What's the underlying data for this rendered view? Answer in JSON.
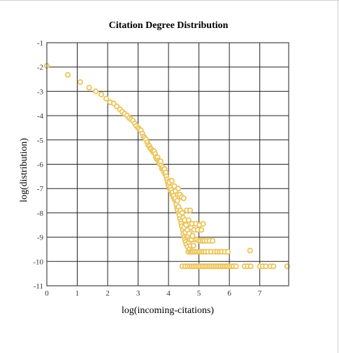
{
  "chart_data": {
    "type": "scatter",
    "title": "Citation Degree Distribution",
    "xlabel": "log(incoming-citations)",
    "ylabel": "log(distribution)",
    "xlim": [
      0,
      7.95
    ],
    "ylim": [
      -11,
      -1
    ],
    "x_ticks": [
      "0",
      "1",
      "2",
      "3",
      "4",
      "5",
      "6",
      "7"
    ],
    "y_ticks": [
      "-1",
      "-2",
      "-3",
      "-4",
      "-5",
      "-6",
      "-7",
      "-8",
      "-9",
      "-10",
      "-11"
    ],
    "grid": true,
    "legend": "none",
    "point_color": "#ebc45a",
    "series": [
      {
        "points": [
          [
            0.0,
            -1.95
          ],
          [
            0.69,
            -2.32
          ],
          [
            1.1,
            -2.62
          ],
          [
            1.39,
            -2.85
          ],
          [
            1.61,
            -3.0
          ],
          [
            1.79,
            -3.13
          ],
          [
            1.95,
            -3.3
          ],
          [
            2.08,
            -3.45
          ],
          [
            2.2,
            -3.5
          ],
          [
            2.3,
            -3.62
          ],
          [
            2.4,
            -3.74
          ],
          [
            2.48,
            -3.84
          ],
          [
            2.56,
            -3.92
          ],
          [
            2.64,
            -4.0
          ],
          [
            2.71,
            -4.1
          ],
          [
            2.77,
            -4.15
          ],
          [
            2.83,
            -4.2
          ],
          [
            2.89,
            -4.32
          ],
          [
            2.94,
            -4.42
          ],
          [
            3.0,
            -4.5
          ],
          [
            3.04,
            -4.56
          ],
          [
            3.09,
            -4.6
          ],
          [
            3.14,
            -4.74
          ],
          [
            3.18,
            -4.86
          ],
          [
            3.22,
            -4.92
          ],
          [
            3.26,
            -4.98
          ],
          [
            3.3,
            -5.1
          ],
          [
            3.33,
            -5.2
          ],
          [
            3.37,
            -5.25
          ],
          [
            3.4,
            -5.34
          ],
          [
            3.43,
            -5.38
          ],
          [
            3.47,
            -5.45
          ],
          [
            3.5,
            -5.5
          ],
          [
            3.53,
            -5.47
          ],
          [
            3.56,
            -5.58
          ],
          [
            3.58,
            -5.7
          ],
          [
            3.61,
            -5.78
          ],
          [
            3.64,
            -5.72
          ],
          [
            3.66,
            -5.85
          ],
          [
            3.69,
            -5.9
          ],
          [
            3.71,
            -5.98
          ],
          [
            3.74,
            -5.88
          ],
          [
            3.76,
            -6.05
          ],
          [
            3.78,
            -6.18
          ],
          [
            3.81,
            -6.12
          ],
          [
            3.83,
            -6.22
          ],
          [
            3.85,
            -6.3
          ],
          [
            3.87,
            -6.2
          ],
          [
            3.89,
            -6.4
          ],
          [
            3.91,
            -6.34
          ],
          [
            3.93,
            -6.5
          ],
          [
            3.95,
            -6.62
          ],
          [
            3.97,
            -6.72
          ],
          [
            3.99,
            -6.82
          ],
          [
            4.01,
            -6.9
          ],
          [
            4.03,
            -6.75
          ],
          [
            4.04,
            -7.0
          ],
          [
            4.06,
            -6.95
          ],
          [
            4.08,
            -7.1
          ],
          [
            4.09,
            -7.05
          ],
          [
            4.11,
            -6.68
          ],
          [
            4.13,
            -7.25
          ],
          [
            4.14,
            -7.15
          ],
          [
            4.16,
            -7.35
          ],
          [
            4.17,
            -7.3
          ],
          [
            4.19,
            -6.9
          ],
          [
            4.2,
            -7.45
          ],
          [
            4.22,
            -7.4
          ],
          [
            4.23,
            -7.1
          ],
          [
            4.25,
            -7.55
          ],
          [
            4.26,
            -7.65
          ],
          [
            4.28,
            -7.8
          ],
          [
            4.29,
            -7.5
          ],
          [
            4.3,
            -7.9
          ],
          [
            4.32,
            -7.0
          ],
          [
            4.33,
            -7.75
          ],
          [
            4.34,
            -8.0
          ],
          [
            4.36,
            -8.1
          ],
          [
            4.37,
            -7.25
          ],
          [
            4.38,
            -8.25
          ],
          [
            4.39,
            -7.9
          ],
          [
            4.41,
            -8.35
          ],
          [
            4.42,
            -8.45
          ],
          [
            4.43,
            -7.35
          ],
          [
            4.44,
            -8.55
          ],
          [
            4.45,
            -8.0
          ],
          [
            4.47,
            -8.7
          ],
          [
            4.48,
            -8.2
          ],
          [
            4.49,
            -8.85
          ],
          [
            4.5,
            -7.4
          ],
          [
            4.51,
            -8.6
          ],
          [
            4.52,
            -9.0
          ],
          [
            4.53,
            -8.3
          ],
          [
            4.54,
            -9.1
          ],
          [
            4.55,
            -8.8
          ],
          [
            4.56,
            -9.2
          ],
          [
            4.58,
            -8.5
          ],
          [
            4.59,
            -9.3
          ],
          [
            4.6,
            -7.9
          ],
          [
            4.61,
            -9.0
          ],
          [
            4.62,
            -8.7
          ],
          [
            4.63,
            -9.4
          ],
          [
            4.64,
            -8.95
          ],
          [
            4.65,
            -9.6
          ],
          [
            4.66,
            -8.3
          ],
          [
            4.67,
            -9.2
          ],
          [
            4.68,
            -8.85
          ],
          [
            4.69,
            -9.5
          ],
          [
            4.7,
            -9.1
          ],
          [
            4.71,
            -7.9
          ],
          [
            4.72,
            -9.6
          ],
          [
            4.73,
            -9.35
          ],
          [
            4.74,
            -8.6
          ],
          [
            4.75,
            -9.6
          ],
          [
            4.76,
            -9.1
          ],
          [
            4.77,
            -8.45
          ],
          [
            4.78,
            -9.6
          ],
          [
            4.79,
            -8.95
          ],
          [
            4.8,
            -9.6
          ],
          [
            4.82,
            -9.35
          ],
          [
            4.84,
            -8.7
          ],
          [
            4.86,
            -9.6
          ],
          [
            4.88,
            -9.1
          ],
          [
            4.9,
            -8.45
          ],
          [
            4.92,
            -9.6
          ],
          [
            4.94,
            -9.1
          ],
          [
            4.96,
            -8.7
          ],
          [
            4.98,
            -9.6
          ],
          [
            5.0,
            -9.15
          ],
          [
            5.02,
            -8.5
          ],
          [
            5.04,
            -9.6
          ],
          [
            5.06,
            -9.15
          ],
          [
            5.08,
            -8.7
          ],
          [
            5.1,
            -9.6
          ],
          [
            5.12,
            -9.15
          ],
          [
            5.14,
            -8.45
          ],
          [
            5.16,
            -9.6
          ],
          [
            5.18,
            -9.15
          ],
          [
            5.22,
            -9.6
          ],
          [
            5.26,
            -9.15
          ],
          [
            5.3,
            -9.6
          ],
          [
            5.35,
            -9.15
          ],
          [
            5.4,
            -9.6
          ],
          [
            5.45,
            -9.15
          ],
          [
            5.52,
            -9.6
          ],
          [
            5.6,
            -9.6
          ],
          [
            5.68,
            -9.6
          ],
          [
            5.75,
            -9.6
          ],
          [
            5.85,
            -9.6
          ],
          [
            5.95,
            -9.6
          ],
          [
            6.68,
            -9.55
          ],
          [
            4.45,
            -10.2
          ],
          [
            4.55,
            -10.2
          ],
          [
            4.63,
            -10.2
          ],
          [
            4.7,
            -10.2
          ],
          [
            4.76,
            -10.2
          ],
          [
            4.82,
            -10.2
          ],
          [
            4.88,
            -10.2
          ],
          [
            4.94,
            -10.2
          ],
          [
            5.0,
            -10.2
          ],
          [
            5.06,
            -10.2
          ],
          [
            5.12,
            -10.2
          ],
          [
            5.18,
            -10.2
          ],
          [
            5.24,
            -10.2
          ],
          [
            5.3,
            -10.2
          ],
          [
            5.36,
            -10.2
          ],
          [
            5.42,
            -10.2
          ],
          [
            5.48,
            -10.2
          ],
          [
            5.54,
            -10.2
          ],
          [
            5.6,
            -10.2
          ],
          [
            5.66,
            -10.2
          ],
          [
            5.72,
            -10.2
          ],
          [
            5.78,
            -10.2
          ],
          [
            5.84,
            -10.2
          ],
          [
            5.9,
            -10.2
          ],
          [
            5.96,
            -10.2
          ],
          [
            6.02,
            -10.2
          ],
          [
            6.08,
            -10.2
          ],
          [
            6.14,
            -10.2
          ],
          [
            6.22,
            -10.2
          ],
          [
            6.5,
            -10.2
          ],
          [
            6.6,
            -10.2
          ],
          [
            6.7,
            -10.2
          ],
          [
            7.0,
            -10.2
          ],
          [
            7.1,
            -10.2
          ],
          [
            7.2,
            -10.2
          ],
          [
            7.35,
            -10.2
          ],
          [
            7.45,
            -10.2
          ],
          [
            7.9,
            -10.2
          ]
        ]
      }
    ]
  }
}
